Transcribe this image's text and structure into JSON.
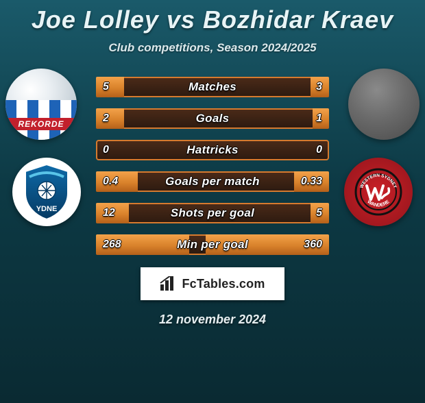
{
  "title": {
    "player1": "Joe Lolley",
    "vs": "vs",
    "player2": "Bozhidar Kraev"
  },
  "subtitle": "Club competitions, Season 2024/2025",
  "player1_jersey_text": "REKORDE",
  "colors": {
    "bar_border": "#d77a2e",
    "bar_fill_top": "#f3a24a",
    "bar_fill_mid": "#d9822b",
    "bar_fill_bot": "#b4601a",
    "bg_top": "#1a5a6a",
    "bg_mid": "#0d3a45",
    "bg_bot": "#0a2a32",
    "club_right_bg": "#c92027",
    "white": "#ffffff"
  },
  "stats": [
    {
      "label": "Matches",
      "left_val": "5",
      "right_val": "3",
      "left_pct": 12,
      "right_pct": 8
    },
    {
      "label": "Goals",
      "left_val": "2",
      "right_val": "1",
      "left_pct": 12,
      "right_pct": 7
    },
    {
      "label": "Hattricks",
      "left_val": "0",
      "right_val": "0",
      "left_pct": 0,
      "right_pct": 0
    },
    {
      "label": "Goals per match",
      "left_val": "0.4",
      "right_val": "0.33",
      "left_pct": 18,
      "right_pct": 15
    },
    {
      "label": "Shots per goal",
      "left_val": "12",
      "right_val": "5",
      "left_pct": 14,
      "right_pct": 8
    },
    {
      "label": "Min per goal",
      "left_val": "268",
      "right_val": "360",
      "left_pct": 40,
      "right_pct": 53
    }
  ],
  "brand": "FcTables.com",
  "date": "12 november 2024",
  "club_left_label": "YDNE",
  "club_right_label": "WANDERE"
}
